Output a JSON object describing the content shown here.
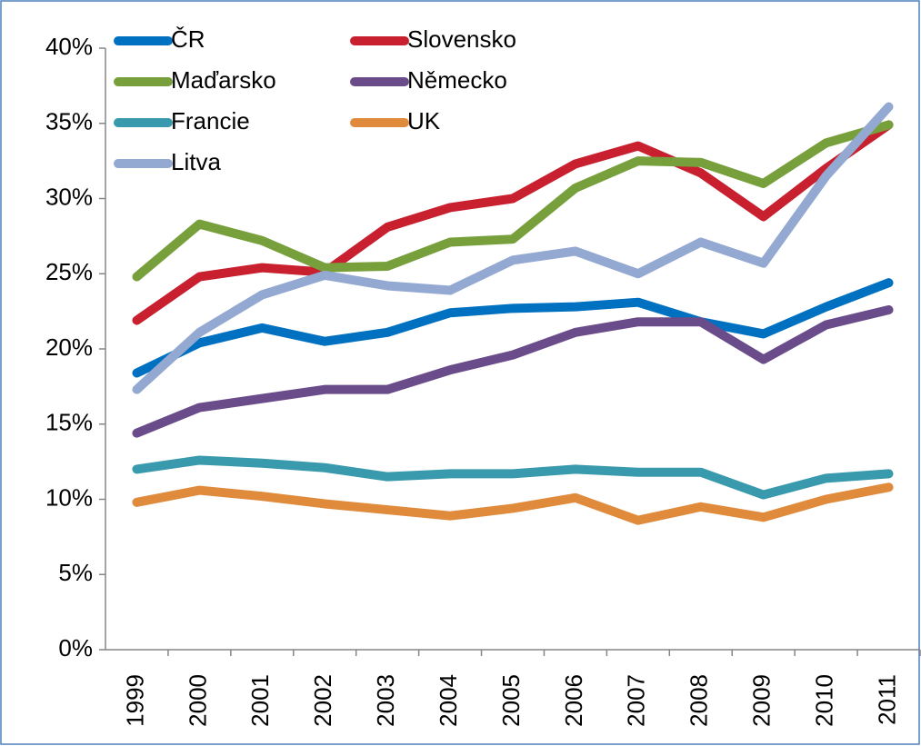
{
  "chart_data": {
    "type": "line",
    "categories": [
      "1999",
      "2000",
      "2001",
      "2002",
      "2003",
      "2004",
      "2005",
      "2006",
      "2007",
      "2008",
      "2009",
      "2010",
      "2011"
    ],
    "series": [
      {
        "name": "ČR",
        "color": "#0070c0",
        "values": [
          18.4,
          20.4,
          21.4,
          20.5,
          21.1,
          22.4,
          22.7,
          22.8,
          23.1,
          21.8,
          21.0,
          22.8,
          24.4
        ]
      },
      {
        "name": "Slovensko",
        "color": "#c8202f",
        "values": [
          21.9,
          24.8,
          25.4,
          25.1,
          28.1,
          29.4,
          30.0,
          32.3,
          33.5,
          31.7,
          28.8,
          32.0,
          34.9
        ]
      },
      {
        "name": "Maďarsko",
        "color": "#77a03c",
        "values": [
          24.8,
          28.3,
          27.2,
          25.4,
          25.5,
          27.1,
          27.3,
          30.7,
          32.5,
          32.4,
          31.0,
          33.7,
          34.9
        ]
      },
      {
        "name": "Německo",
        "color": "#6b4c8a",
        "values": [
          14.4,
          16.1,
          16.7,
          17.3,
          17.3,
          18.6,
          19.6,
          21.1,
          21.8,
          21.8,
          19.3,
          21.6,
          22.6
        ]
      },
      {
        "name": "Francie",
        "color": "#3a9aad",
        "values": [
          12.0,
          12.6,
          12.4,
          12.1,
          11.5,
          11.7,
          11.7,
          12.0,
          11.8,
          11.8,
          10.3,
          11.4,
          11.7
        ]
      },
      {
        "name": "UK",
        "color": "#e08a3c",
        "values": [
          9.8,
          10.6,
          10.2,
          9.7,
          9.3,
          8.9,
          9.4,
          10.1,
          8.6,
          9.5,
          8.8,
          10.0,
          10.8
        ]
      },
      {
        "name": "Litva",
        "color": "#93a9d2",
        "values": [
          17.3,
          21.1,
          23.6,
          24.9,
          24.2,
          23.9,
          25.9,
          26.5,
          25.0,
          27.1,
          25.7,
          31.5,
          36.1
        ]
      }
    ],
    "ylim": [
      0,
      40
    ],
    "yticks": [
      {
        "value": 0,
        "label": "0%"
      },
      {
        "value": 5,
        "label": "5%"
      },
      {
        "value": 10,
        "label": "10%"
      },
      {
        "value": 15,
        "label": "15%"
      },
      {
        "value": 20,
        "label": "20%"
      },
      {
        "value": 25,
        "label": "25%"
      },
      {
        "value": 30,
        "label": "30%"
      },
      {
        "value": 35,
        "label": "35%"
      },
      {
        "value": 40,
        "label": "40%"
      }
    ],
    "legend": "upper left"
  }
}
